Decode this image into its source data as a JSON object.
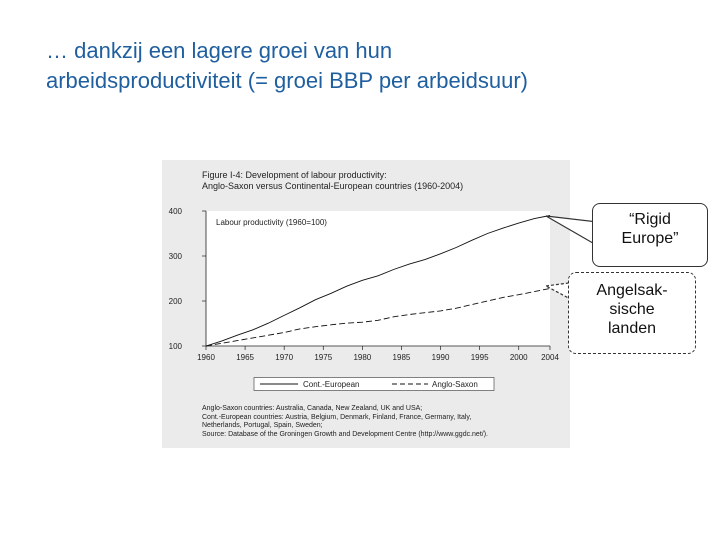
{
  "slide": {
    "title_line1": "… dankzij een lagere groei van hun",
    "title_line2": "arbeidsproductiviteit (= groei BBP per arbeidsuur)"
  },
  "figure": {
    "title_line1": "Figure I-4: Development of labour productivity:",
    "title_line2": "Anglo-Saxon versus Continental-European countries (1960-2004)",
    "notes": [
      "Anglo-Saxon countries: Australia, Canada, New Zealand, UK and USA;",
      "Cont.-European countries: Austria, Belgium, Denmark, Finland, France, Germany, Italy,",
      "Netherlands, Portugal, Spain, Sweden;",
      "Source: Database of the Groningen Growth and Development Centre (http://www.ggdc.net/)."
    ]
  },
  "callouts": {
    "rigid_line1": "“Rigid",
    "rigid_line2": "Europe”",
    "anglo_line1": "Angelsak-",
    "anglo_line2": "sische",
    "anglo_line3": "landen"
  },
  "chart_data": {
    "type": "line",
    "ylabel": "Labour productivity (1960=100)",
    "xlabel": "",
    "ylim": [
      100,
      400
    ],
    "xlim": [
      1960,
      2004
    ],
    "yticks": [
      100,
      200,
      300,
      400
    ],
    "xticks": [
      1960,
      1965,
      1970,
      1975,
      1980,
      1985,
      1990,
      1995,
      2000,
      2004
    ],
    "grid": false,
    "legend_position": "bottom",
    "x": [
      1960,
      1962,
      1964,
      1966,
      1968,
      1970,
      1972,
      1974,
      1976,
      1978,
      1980,
      1982,
      1984,
      1986,
      1988,
      1990,
      1992,
      1994,
      1996,
      1998,
      2000,
      2002,
      2004
    ],
    "series": [
      {
        "name": "Cont.-European",
        "style": "solid",
        "values": [
          100,
          111,
          124,
          136,
          151,
          168,
          185,
          203,
          217,
          233,
          246,
          256,
          270,
          282,
          292,
          305,
          319,
          335,
          350,
          362,
          373,
          383,
          390
        ]
      },
      {
        "name": "Anglo-Saxon",
        "style": "dashed",
        "values": [
          100,
          106,
          112,
          118,
          124,
          130,
          138,
          143,
          147,
          151,
          153,
          157,
          165,
          170,
          174,
          178,
          184,
          192,
          200,
          208,
          214,
          221,
          228
        ]
      }
    ]
  }
}
